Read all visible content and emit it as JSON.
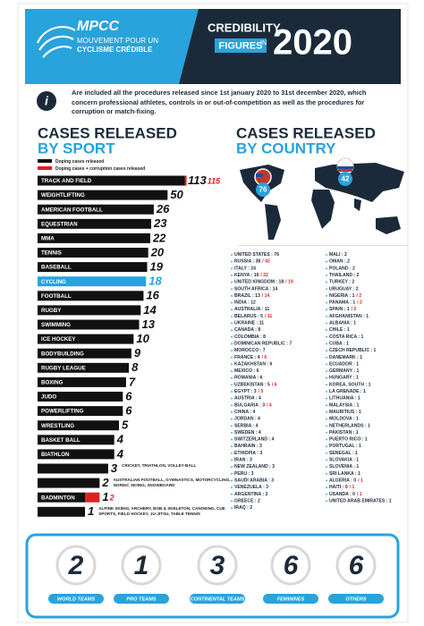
{
  "header": {
    "logo": "MPCC",
    "logo_line1": "MOUVEMENT POUR UN",
    "logo_line2": "CYCLISME CRÉDIBLE",
    "title1": "CREDIBILITY",
    "title2": "FIGURES",
    "title_in": "IN",
    "year": "2020"
  },
  "intro": "Are included all the procedures released since 1st january 2020 to 31st december 2020, which concern professional athletes, controls in or out-of-competition as well as the procedures for corruption or match-fixing.",
  "chart_data": {
    "type": "bar",
    "horizontal": true,
    "log": true,
    "title": "CASES RELEASED",
    "subtitle": "BY SPORT",
    "highlight": "CYCLING",
    "highlight_color": "#29a3dc",
    "categories": [
      "TRACK AND FIELD",
      "WEIGHTLIFTING",
      "AMERICAN FOOTBALL",
      "EQUESTRIAN",
      "MMA",
      "TENNIS",
      "BASEBALL",
      "CYCLING",
      "FOOTBALL",
      "RUGBY",
      "SWIMMING",
      "ICE HOCKEY",
      "BODYBUILDING",
      "RUGBY LEAGUE",
      "BOXING",
      "JUDO",
      "POWERLIFTING",
      "WRESTLING",
      "BASKET BALL",
      "BIATHLON",
      null,
      null,
      "BADMINTON",
      null
    ],
    "category_notes": [
      null,
      null,
      null,
      null,
      null,
      null,
      null,
      null,
      null,
      null,
      null,
      null,
      null,
      null,
      null,
      null,
      null,
      null,
      null,
      null,
      "CRICKET, TRIATHLON, VOLLEY-BALL",
      "AUSTRALIAN FOOTBALL, GYMNASTICS, MOTORCYCLING, NORDIC SKIING, SNOWBOARD",
      null,
      "ALPINE SKIING, ARCHERY, BOB & SKELETON, CANOEING, CUE SPORTS, FIELD HOCKEY, JU-JITSU, TABLE TENNIS"
    ],
    "series": [
      {
        "name": "Doping cases released",
        "color": "#111111",
        "values": [
          113,
          50,
          26,
          23,
          22,
          20,
          19,
          18,
          16,
          14,
          13,
          10,
          9,
          8,
          7,
          6,
          6,
          5,
          4,
          4,
          3,
          2,
          1,
          1
        ]
      },
      {
        "name": "Doping cases + corruption cases released",
        "color": "#e02020",
        "values": [
          115,
          null,
          null,
          null,
          null,
          null,
          null,
          null,
          null,
          null,
          null,
          null,
          null,
          null,
          null,
          null,
          null,
          null,
          null,
          null,
          null,
          null,
          2,
          null
        ]
      }
    ]
  },
  "countries": {
    "title": "CASES RELEASED",
    "subtitle": "BY COUNTRY",
    "map_badges": [
      "76",
      "42"
    ],
    "columns": [
      [
        {
          "text": "UNITED STATES : 76"
        },
        {
          "text": "RUSSIA : 38",
          "extra": "/ 42"
        },
        {
          "text": "ITALY : 24"
        },
        {
          "text": "KENYA : 19",
          "extra": "/ 22"
        },
        {
          "text": "UNITED KINGDOM : 18",
          "extra": "/ 19"
        },
        {
          "text": "SOUTH AFRICA : 14"
        },
        {
          "text": "BRAZIL : 13",
          "extra": "/ 14"
        },
        {
          "text": "INDIA : 12"
        },
        {
          "text": "AUSTRALIA : 11"
        },
        {
          "text": "BELARUS : 5",
          "extra": "/ 11"
        },
        {
          "text": "UKRAINE : 11"
        },
        {
          "text": "CANADA : 8"
        },
        {
          "text": "COLOMBIA : 8"
        },
        {
          "text": "DOMINICAN REPUBLIC : 7"
        },
        {
          "text": "MOROCCO : 7"
        },
        {
          "text": "FRANCE : 4",
          "extra": "/ 6"
        },
        {
          "text": "KAZAKHSTAN : 6"
        },
        {
          "text": "MEXICO : 6"
        },
        {
          "text": "ROMANIA : 6"
        },
        {
          "text": "UZBEKISTAN : 5",
          "extra": "/ 6"
        },
        {
          "text": "EGYPT : 3",
          "extra": "/ 5"
        },
        {
          "text": "AUSTRIA : 4"
        },
        {
          "text": "BULGARIA : 3",
          "extra": "/ 4"
        },
        {
          "text": "CHINA : 4"
        },
        {
          "text": "JORDAN : 4"
        },
        {
          "text": "SERBIA : 4"
        },
        {
          "text": "SWEDEN : 4"
        },
        {
          "text": "SWITZERLAND : 4"
        },
        {
          "text": "BAHRAIN : 3"
        },
        {
          "text": "ETHIOPIA : 3"
        },
        {
          "text": "IRAN : 3"
        },
        {
          "text": "NEW ZEALAND : 3"
        },
        {
          "text": "PERU : 3"
        },
        {
          "text": "SAUDI ARABIA : 3"
        },
        {
          "text": "VENEZUELA : 3"
        },
        {
          "text": "ARGENTINA : 2"
        },
        {
          "text": "GREECE : 2"
        },
        {
          "text": "IRAQ : 2"
        }
      ],
      [
        {
          "text": "MALI : 2"
        },
        {
          "text": "OMAN : 2"
        },
        {
          "text": "POLAND : 2"
        },
        {
          "text": "THAILAND : 2"
        },
        {
          "text": "TURKEY : 2"
        },
        {
          "text": "URUGUAY : 2"
        },
        {
          "text": "NIGERIA : 1",
          "extra": "/ 2"
        },
        {
          "text": "PANAMA : 1",
          "extra": "/ 2"
        },
        {
          "text": "SPAIN : 1",
          "extra": "/ 2"
        },
        {
          "text": "AFGHANISTAN : 1"
        },
        {
          "text": "ALBANIA : 1"
        },
        {
          "text": "CHILE : 1"
        },
        {
          "text": "COSTA RICA : 1"
        },
        {
          "text": "CUBA : 1"
        },
        {
          "text": "CZECH REPUBLIC : 1"
        },
        {
          "text": "DANEMARK : 1"
        },
        {
          "text": "ECUADOR : 1"
        },
        {
          "text": "GERMANY : 1"
        },
        {
          "text": "HUNGARY : 1"
        },
        {
          "text": "KOREA, SOUTH : 1"
        },
        {
          "text": "LA GRENADE : 1"
        },
        {
          "text": "LITHUANIA : 1"
        },
        {
          "text": "MALAYSIA : 1"
        },
        {
          "text": "MAURITIUS : 1"
        },
        {
          "text": "MOLDOVA : 1"
        },
        {
          "text": "NETHERLANDS : 1"
        },
        {
          "text": "PAKISTAN : 1"
        },
        {
          "text": "PUERTO RICO : 1"
        },
        {
          "text": "PORTUGAL : 1"
        },
        {
          "text": "SENEGAL : 1"
        },
        {
          "text": "SLOVAKIA : 1"
        },
        {
          "text": "SLOVENIA : 1"
        },
        {
          "text": "SRI LANKA : 1"
        },
        {
          "text": "ALGERIA : 0",
          "extra": "/ 1"
        },
        {
          "text": "HAITI : 0",
          "extra": "/ 1"
        },
        {
          "text": "USANDA : 0",
          "extra": "/ 1"
        },
        {
          "text": "UNITED ARAB EMIRATES : 1"
        }
      ]
    ]
  },
  "cycling_teams": [
    {
      "value": "2",
      "label": "WORLD TEAMS"
    },
    {
      "value": "1",
      "label": "PRO TEAMS"
    },
    {
      "value": "3",
      "label": "CONTINENTAL TEAMS"
    },
    {
      "value": "6",
      "label": "FEMININES"
    },
    {
      "value": "6",
      "label": "OTHERS"
    }
  ]
}
